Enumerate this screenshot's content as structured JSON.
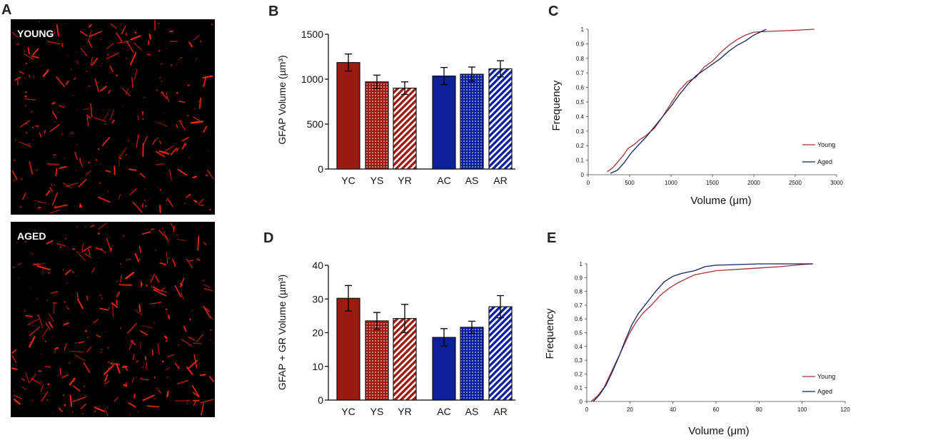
{
  "colors": {
    "young": "#9b1b12",
    "aged": "#0c1f9c",
    "young_line": "#a3333a",
    "aged_line": "#13235f",
    "vessel": "#ff2a1a"
  },
  "panel_a": {
    "letter": "A",
    "images": [
      {
        "label": "YOUNG"
      },
      {
        "label": "AGED"
      }
    ]
  },
  "chart_data": [
    {
      "id": "B",
      "type": "bar",
      "title": "B",
      "ylabel": "GFAP Volume (µm³)",
      "xlabel": "",
      "categories": [
        "YC",
        "YS",
        "YR",
        "AC",
        "AS",
        "AR"
      ],
      "values": [
        1185,
        970,
        900,
        1035,
        1055,
        1115
      ],
      "errors": [
        95,
        75,
        70,
        95,
        80,
        90
      ],
      "patterns": [
        "solid",
        "dots",
        "hatch",
        "solid",
        "dots",
        "hatch"
      ],
      "groups": [
        "young",
        "young",
        "young",
        "aged",
        "aged",
        "aged"
      ],
      "ylim": [
        0,
        1500
      ],
      "yticks": [
        0,
        500,
        1000,
        1500
      ]
    },
    {
      "id": "D",
      "type": "bar",
      "title": "D",
      "ylabel": "GFAP + GR Volume (µm³)",
      "xlabel": "",
      "categories": [
        "YC",
        "YS",
        "YR",
        "AC",
        "AS",
        "AR"
      ],
      "values": [
        30.2,
        23.5,
        24.2,
        18.6,
        21.6,
        27.7
      ],
      "errors": [
        3.8,
        2.5,
        4.2,
        2.6,
        1.8,
        3.3
      ],
      "patterns": [
        "solid",
        "dots",
        "hatch",
        "solid",
        "dots",
        "hatch"
      ],
      "groups": [
        "young",
        "young",
        "young",
        "aged",
        "aged",
        "aged"
      ],
      "ylim": [
        0,
        40
      ],
      "yticks": [
        0,
        10,
        20,
        30,
        40
      ]
    },
    {
      "id": "C",
      "type": "line",
      "title": "C",
      "xlabel": "Volume (μm)",
      "ylabel": "Frequency",
      "xlim": [
        0,
        3000
      ],
      "ylim": [
        0,
        1
      ],
      "xticks": [
        0,
        500,
        1000,
        1500,
        2000,
        2500,
        3000
      ],
      "yticks": [
        0,
        0.1,
        0.2,
        0.3,
        0.4,
        0.5,
        0.6,
        0.7,
        0.8,
        0.9,
        1
      ],
      "legend": "bottom-right",
      "series": [
        {
          "name": "Young",
          "group": "young",
          "x": [
            230,
            300,
            360,
            420,
            480,
            560,
            620,
            700,
            800,
            900,
            1000,
            1100,
            1200,
            1300,
            1400,
            1500,
            1600,
            1700,
            1800,
            1900,
            2000,
            2150,
            2400,
            2730
          ],
          "y": [
            0.02,
            0.05,
            0.09,
            0.13,
            0.18,
            0.21,
            0.24,
            0.27,
            0.32,
            0.4,
            0.49,
            0.58,
            0.64,
            0.67,
            0.74,
            0.78,
            0.84,
            0.89,
            0.93,
            0.96,
            0.98,
            0.985,
            0.99,
            1.0
          ]
        },
        {
          "name": "Aged",
          "group": "aged",
          "x": [
            270,
            350,
            430,
            520,
            600,
            700,
            800,
            900,
            1000,
            1100,
            1200,
            1300,
            1400,
            1500,
            1600,
            1700,
            1800,
            1900,
            2000,
            2150
          ],
          "y": [
            0.01,
            0.03,
            0.08,
            0.15,
            0.2,
            0.26,
            0.33,
            0.4,
            0.47,
            0.55,
            0.62,
            0.68,
            0.72,
            0.76,
            0.8,
            0.85,
            0.89,
            0.92,
            0.96,
            1.0
          ]
        }
      ]
    },
    {
      "id": "E",
      "type": "line",
      "title": "E",
      "xlabel": "Volume (μm)",
      "ylabel": "Frequency",
      "xlim": [
        0,
        120
      ],
      "ylim": [
        0,
        1
      ],
      "xticks": [
        0,
        20,
        40,
        60,
        80,
        100,
        120
      ],
      "yticks": [
        0,
        0.1,
        0.2,
        0.3,
        0.4,
        0.5,
        0.6,
        0.7,
        0.8,
        0.9,
        1
      ],
      "legend": "bottom-right",
      "series": [
        {
          "name": "Young",
          "group": "young",
          "x": [
            2,
            5,
            8,
            11,
            14,
            17,
            20,
            23,
            26,
            30,
            34,
            38,
            42,
            46,
            50,
            55,
            60,
            70,
            80,
            90,
            97,
            100,
            105
          ],
          "y": [
            0.0,
            0.04,
            0.1,
            0.2,
            0.3,
            0.4,
            0.5,
            0.58,
            0.64,
            0.7,
            0.77,
            0.82,
            0.86,
            0.89,
            0.92,
            0.935,
            0.95,
            0.96,
            0.97,
            0.98,
            0.99,
            0.995,
            1.0
          ]
        },
        {
          "name": "Aged",
          "group": "aged",
          "x": [
            3,
            6,
            9,
            12,
            15,
            18,
            21,
            24,
            28,
            32,
            36,
            40,
            44,
            50,
            55,
            60,
            70,
            80,
            90,
            105
          ],
          "y": [
            0.0,
            0.05,
            0.12,
            0.22,
            0.33,
            0.45,
            0.56,
            0.64,
            0.72,
            0.8,
            0.87,
            0.91,
            0.93,
            0.95,
            0.98,
            0.99,
            0.995,
            1.0,
            1.0,
            1.0
          ]
        }
      ]
    }
  ]
}
